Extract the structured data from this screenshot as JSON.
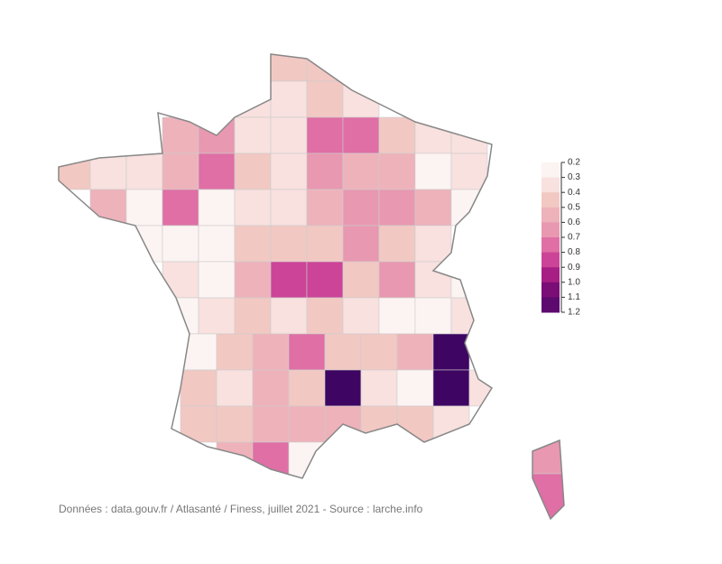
{
  "chart_data": {
    "type": "choropleth",
    "source": "Données : data.gouv.fr / Atlasanté / Finess, juillet 2021 - Source : larche.info",
    "values": [
      0.4,
      0.4,
      0.3,
      0.3,
      0.4,
      0.3,
      0.5,
      0.6,
      0.3,
      0.3,
      0.7,
      0.7,
      0.4,
      0.3,
      0.3,
      0.4,
      0.3,
      0.3,
      0.5,
      0.7,
      0.4,
      0.3,
      0.6,
      0.5,
      0.5,
      0.2,
      0.3,
      0.5,
      0.2,
      0.7,
      0.2,
      0.3,
      0.3,
      0.5,
      0.6,
      0.6,
      0.5,
      0.2,
      0.2,
      0.2,
      0.2,
      0.4,
      0.4,
      0.4,
      0.6,
      0.4,
      0.3,
      0.3,
      0.2,
      0.5,
      0.8,
      0.8,
      0.4,
      0.6,
      0.3,
      0.2,
      0.2,
      0.3,
      0.4,
      0.3,
      0.4,
      0.3,
      0.2,
      0.2,
      0.3,
      0.2,
      0.4,
      0.5,
      0.7,
      0.4,
      0.4,
      0.5,
      1.2,
      0.4,
      0.3,
      0.5,
      0.4,
      1.2,
      0.3,
      0.2,
      1.2,
      0.3,
      0.4,
      0.4,
      0.5,
      0.5,
      0.5,
      0.4,
      0.4,
      0.3,
      0.5,
      0.7,
      0.2,
      0.6,
      0.7
    ],
    "scale_ticks": [
      0.2,
      0.3,
      0.4,
      0.5,
      0.6,
      0.7,
      0.8,
      0.9,
      {
        "value": 1,
        "label": "1.0"
      },
      1.1,
      1.2
    ],
    "scale_colors": [
      "#fcf4f2",
      "#f8e1df",
      "#f2c8c3",
      "#eeb2ba",
      "#e898b0",
      "#df6fa5",
      "#cc4497",
      "#a71f84",
      "#7b0d76",
      "#5c0a6e",
      "#3e0562"
    ]
  }
}
